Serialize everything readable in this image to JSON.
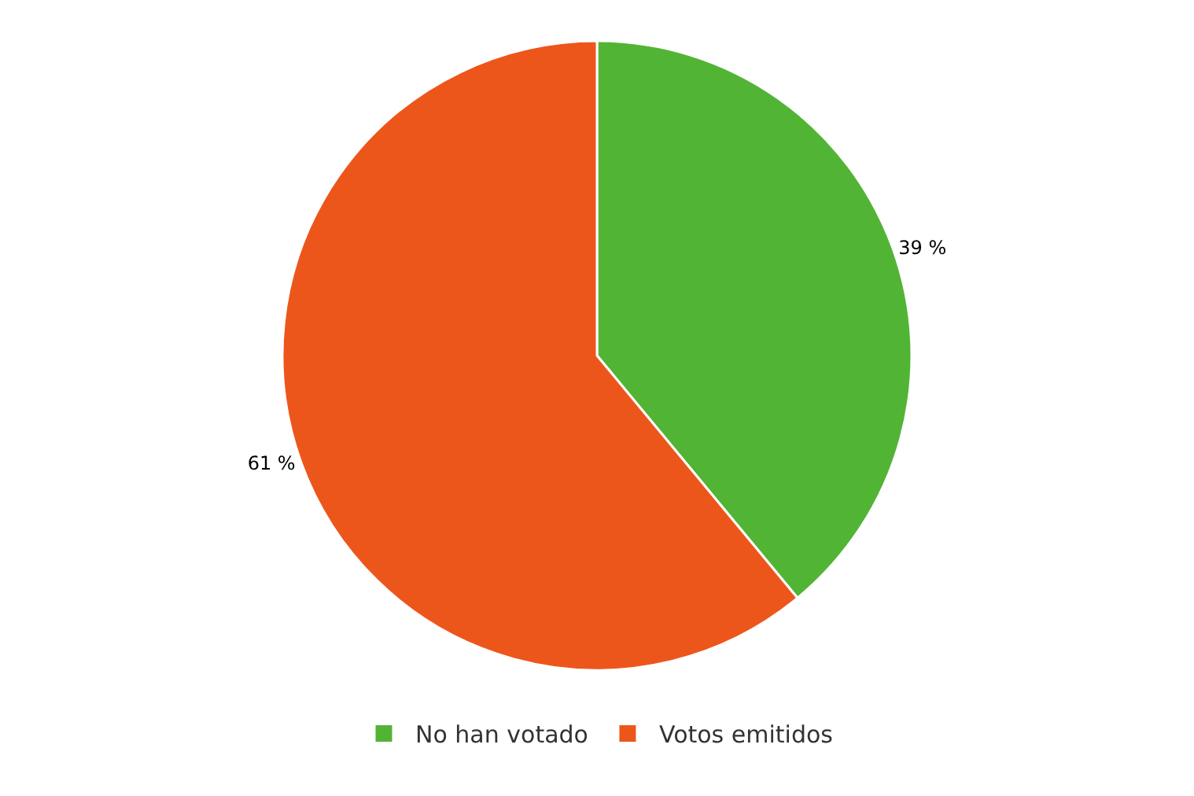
{
  "chart_data": {
    "type": "pie",
    "categories": [
      "No han votado",
      "Votos emitidos"
    ],
    "values": [
      39,
      61
    ],
    "colors": [
      "#52b435",
      "#ed561b"
    ],
    "value_labels": [
      "39 %",
      "61 %"
    ],
    "legend": "bottom"
  }
}
